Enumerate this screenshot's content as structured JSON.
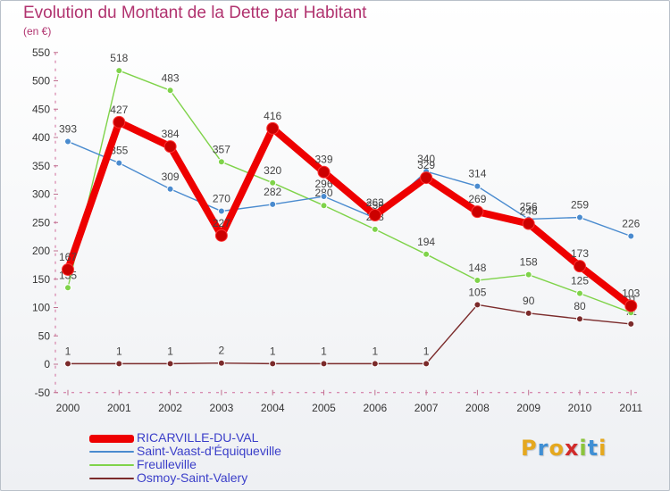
{
  "header": {
    "title": "Evolution du Montant de la Dette par Habitant",
    "unit": "(en €)"
  },
  "chart_data": {
    "type": "line",
    "x": [
      "2000",
      "2001",
      "2002",
      "2003",
      "2004",
      "2005",
      "2006",
      "2007",
      "2008",
      "2009",
      "2010",
      "2011"
    ],
    "ylim": [
      -50,
      550
    ],
    "yticks": [
      "-50",
      "0",
      "50",
      "100",
      "150",
      "200",
      "250",
      "300",
      "350",
      "400",
      "450",
      "500",
      "550"
    ],
    "grid": false,
    "legend_position": "bottom-left",
    "series": [
      {
        "name": "RICARVILLE-DU-VAL",
        "color": "#ee0000",
        "values": [
          167,
          427,
          384,
          227,
          416,
          339,
          263,
          329,
          269,
          248,
          173,
          103
        ],
        "labels": [
          "167",
          "427",
          "384",
          "227",
          "416",
          "339",
          "263",
          "329",
          "269",
          "248",
          "173",
          "103"
        ]
      },
      {
        "name": "Saint-Vaast-d'Équiqueville",
        "color": "#4a8bcf",
        "values": [
          393,
          355,
          309,
          270,
          282,
          296,
          258,
          340,
          314,
          256,
          259,
          226
        ],
        "labels": [
          "393",
          "355",
          "309",
          "270",
          "282",
          "296",
          "258",
          "340",
          "314",
          "256",
          "259",
          "226"
        ]
      },
      {
        "name": "Freulleville",
        "color": "#7fd34a",
        "values": [
          135,
          518,
          483,
          357,
          320,
          280,
          238,
          194,
          148,
          158,
          125,
          91
        ],
        "labels": [
          "135",
          "518",
          "483",
          "357",
          "320",
          "280",
          "238",
          "194",
          "148",
          "158",
          "125",
          "91"
        ]
      },
      {
        "name": "Osmoy-Saint-Valery",
        "color": "#7b2b2b",
        "values": [
          1,
          1,
          1,
          2,
          1,
          1,
          1,
          1,
          105,
          90,
          80,
          71
        ],
        "labels": [
          "1",
          "1",
          "1",
          "2",
          "1",
          "1",
          "1",
          "1",
          "105",
          "90",
          "80",
          "71"
        ]
      }
    ]
  },
  "logo": {
    "letters": [
      "P",
      "r",
      "o",
      "x",
      "i",
      "t",
      "i"
    ],
    "colors": [
      "#e5a81e",
      "#3f8fd4",
      "#e5a81e",
      "#d12a2a",
      "#8cc43c",
      "#3f8fd4",
      "#e5a81e"
    ]
  }
}
